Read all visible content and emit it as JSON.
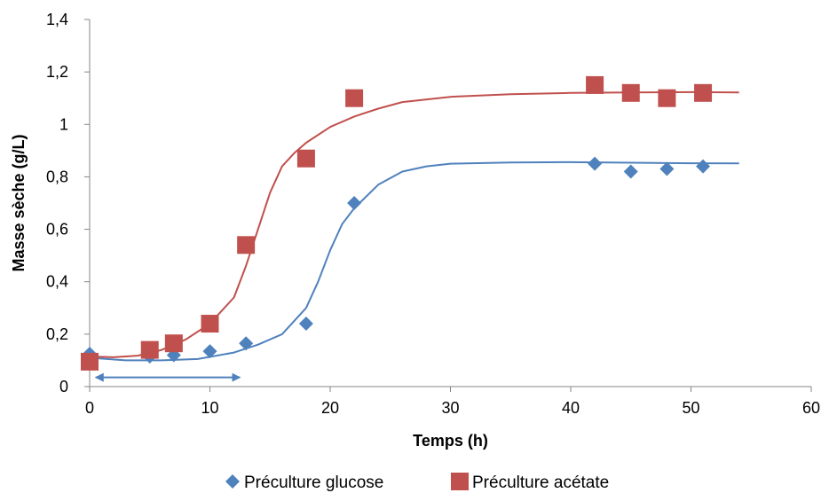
{
  "chart_data": {
    "type": "scatter",
    "title": "",
    "xlabel": "Temps (h)",
    "ylabel": "Masse sèche (g/L)",
    "xlim": [
      0,
      60
    ],
    "ylim": [
      0,
      1.4
    ],
    "x_ticks": [
      0,
      10,
      20,
      30,
      40,
      50,
      60
    ],
    "y_ticks": [
      0,
      0.2,
      0.4,
      0.6,
      0.8,
      1,
      1.2,
      1.4
    ],
    "x_tick_labels": [
      "0",
      "10",
      "20",
      "30",
      "40",
      "50",
      "60"
    ],
    "y_tick_labels": [
      "0",
      "0,2",
      "0,4",
      "0,6",
      "0,8",
      "1",
      "1,2",
      "1,4"
    ],
    "grid": false,
    "legend_position": "bottom",
    "series": [
      {
        "name": "Préculture glucose",
        "marker": "diamond",
        "color": "#4f81bd",
        "points": [
          [
            0,
            0.125
          ],
          [
            5,
            0.115
          ],
          [
            7,
            0.12
          ],
          [
            10,
            0.135
          ],
          [
            13,
            0.165
          ],
          [
            18,
            0.24
          ],
          [
            22,
            0.7
          ],
          [
            42,
            0.85
          ],
          [
            45,
            0.82
          ],
          [
            48,
            0.83
          ],
          [
            51,
            0.84
          ]
        ],
        "fit": [
          [
            0,
            0.11
          ],
          [
            3,
            0.1
          ],
          [
            6,
            0.1
          ],
          [
            9,
            0.105
          ],
          [
            12,
            0.13
          ],
          [
            14,
            0.16
          ],
          [
            16,
            0.2
          ],
          [
            18,
            0.3
          ],
          [
            19,
            0.4
          ],
          [
            20,
            0.52
          ],
          [
            21,
            0.62
          ],
          [
            22,
            0.68
          ],
          [
            24,
            0.77
          ],
          [
            26,
            0.82
          ],
          [
            28,
            0.84
          ],
          [
            30,
            0.85
          ],
          [
            35,
            0.855
          ],
          [
            40,
            0.856
          ],
          [
            45,
            0.854
          ],
          [
            50,
            0.852
          ],
          [
            54,
            0.851
          ]
        ]
      },
      {
        "name": "Préculture acétate",
        "marker": "square",
        "color": "#c0504d",
        "points": [
          [
            0,
            0.095
          ],
          [
            5,
            0.14
          ],
          [
            7,
            0.165
          ],
          [
            10,
            0.24
          ],
          [
            13,
            0.54
          ],
          [
            18,
            0.87
          ],
          [
            22,
            1.1
          ],
          [
            42,
            1.15
          ],
          [
            45,
            1.12
          ],
          [
            48,
            1.1
          ],
          [
            51,
            1.12
          ]
        ],
        "fit": [
          [
            0,
            0.115
          ],
          [
            2,
            0.112
          ],
          [
            4,
            0.118
          ],
          [
            6,
            0.14
          ],
          [
            8,
            0.18
          ],
          [
            10,
            0.24
          ],
          [
            12,
            0.34
          ],
          [
            13,
            0.46
          ],
          [
            14,
            0.6
          ],
          [
            15,
            0.74
          ],
          [
            16,
            0.84
          ],
          [
            17,
            0.89
          ],
          [
            18,
            0.93
          ],
          [
            20,
            0.99
          ],
          [
            22,
            1.03
          ],
          [
            24,
            1.06
          ],
          [
            26,
            1.085
          ],
          [
            30,
            1.105
          ],
          [
            35,
            1.115
          ],
          [
            40,
            1.12
          ],
          [
            45,
            1.122
          ],
          [
            50,
            1.123
          ],
          [
            54,
            1.122
          ]
        ]
      }
    ],
    "annotations": [
      {
        "type": "double-arrow",
        "x_start": 0.5,
        "x_end": 12.5,
        "y": 0.035,
        "color": "#4f81bd"
      }
    ]
  }
}
